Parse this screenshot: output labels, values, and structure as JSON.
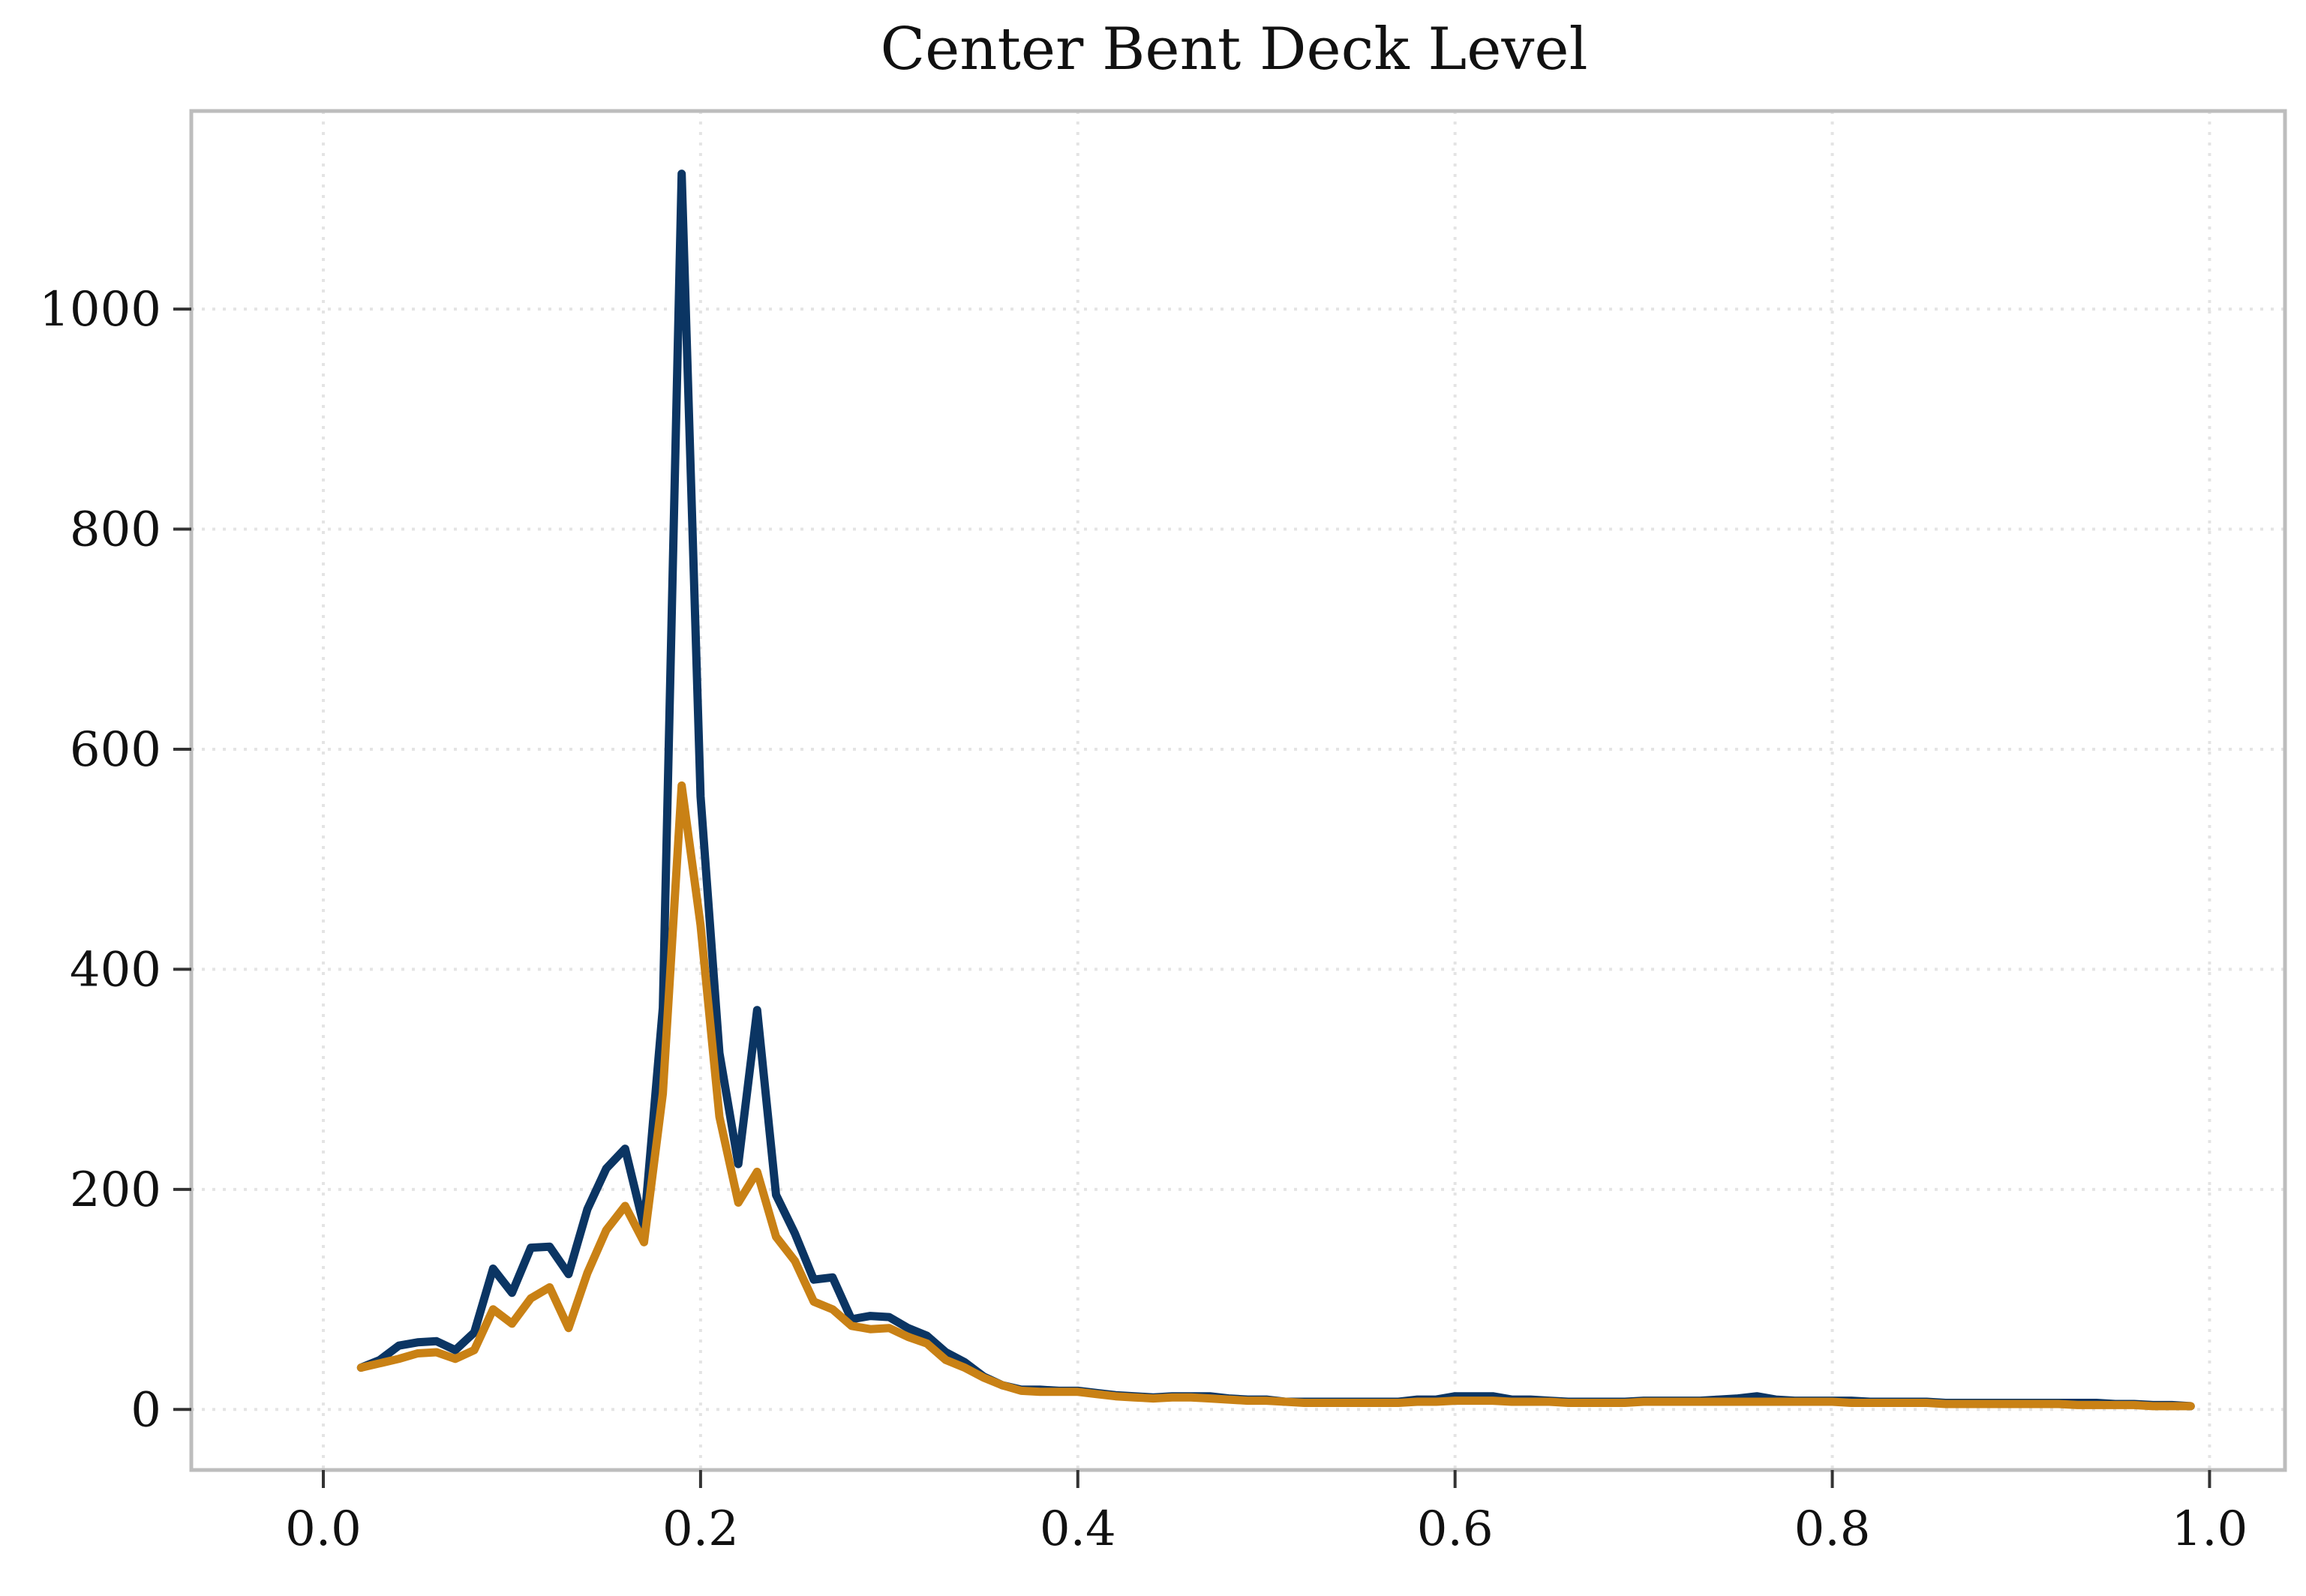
{
  "chart_data": {
    "type": "line",
    "title": "Center Bent Deck Level",
    "xlabel": "",
    "ylabel": "",
    "xlim": [
      -0.07,
      1.04
    ],
    "ylim": [
      -55,
      1180
    ],
    "xticks": [
      0.0,
      0.2,
      0.4,
      0.6,
      0.8,
      1.0
    ],
    "xtick_labels": [
      "0.0",
      "0.2",
      "0.4",
      "0.6",
      "0.8",
      "1.0"
    ],
    "yticks": [
      0,
      200,
      400,
      600,
      800,
      1000
    ],
    "ytick_labels": [
      "0",
      "200",
      "400",
      "600",
      "800",
      "1000"
    ],
    "grid": true,
    "legend": "none",
    "x": [
      0.02,
      0.03,
      0.04,
      0.05,
      0.06,
      0.07,
      0.08,
      0.09,
      0.1,
      0.11,
      0.12,
      0.13,
      0.14,
      0.15,
      0.16,
      0.17,
      0.18,
      0.19,
      0.2,
      0.21,
      0.22,
      0.23,
      0.24,
      0.25,
      0.26,
      0.27,
      0.28,
      0.29,
      0.3,
      0.31,
      0.32,
      0.33,
      0.34,
      0.35,
      0.36,
      0.37,
      0.38,
      0.39,
      0.4,
      0.41,
      0.42,
      0.43,
      0.44,
      0.45,
      0.46,
      0.47,
      0.48,
      0.49,
      0.5,
      0.51,
      0.52,
      0.53,
      0.54,
      0.55,
      0.56,
      0.57,
      0.58,
      0.59,
      0.6,
      0.61,
      0.62,
      0.63,
      0.64,
      0.65,
      0.66,
      0.67,
      0.68,
      0.69,
      0.7,
      0.71,
      0.72,
      0.73,
      0.74,
      0.75,
      0.76,
      0.77,
      0.78,
      0.79,
      0.8,
      0.81,
      0.82,
      0.83,
      0.84,
      0.85,
      0.86,
      0.87,
      0.88,
      0.89,
      0.9,
      0.91,
      0.92,
      0.93,
      0.94,
      0.95,
      0.96,
      0.97,
      0.98,
      0.99
    ],
    "series": [
      {
        "color": "#0b3563",
        "values": [
          38,
          45,
          58,
          61,
          62,
          54,
          70,
          128,
          106,
          147,
          148,
          123,
          182,
          219,
          237,
          166,
          365,
          1123,
          557,
          324,
          223,
          363,
          195,
          160,
          118,
          120,
          82,
          85,
          84,
          74,
          67,
          52,
          43,
          30,
          22,
          18,
          18,
          17,
          17,
          15,
          13,
          12,
          11,
          12,
          12,
          12,
          10,
          9,
          9,
          7,
          7,
          7,
          7,
          7,
          7,
          7,
          9,
          9,
          12,
          12,
          12,
          9,
          9,
          8,
          7,
          7,
          7,
          7,
          8,
          8,
          8,
          8,
          9,
          10,
          12,
          9,
          8,
          8,
          8,
          8,
          7,
          7,
          7,
          7,
          6,
          6,
          6,
          6,
          6,
          6,
          6,
          6,
          6,
          5,
          5,
          4,
          4,
          3
        ]
      },
      {
        "color": "#c98115",
        "values": [
          38,
          42,
          46,
          51,
          52,
          46,
          54,
          91,
          78,
          101,
          111,
          74,
          124,
          163,
          185,
          152,
          287,
          567,
          440,
          266,
          188,
          216,
          157,
          135,
          98,
          91,
          76,
          73,
          74,
          66,
          60,
          45,
          38,
          29,
          22,
          17,
          16,
          16,
          16,
          14,
          12,
          11,
          10,
          11,
          11,
          10,
          9,
          8,
          8,
          7,
          6,
          6,
          6,
          6,
          6,
          6,
          7,
          7,
          8,
          8,
          8,
          7,
          7,
          7,
          6,
          6,
          6,
          6,
          7,
          7,
          7,
          7,
          7,
          7,
          7,
          7,
          7,
          7,
          7,
          6,
          6,
          6,
          6,
          6,
          5,
          5,
          5,
          5,
          5,
          5,
          5,
          4,
          4,
          4,
          4,
          3,
          3,
          3
        ]
      }
    ]
  }
}
